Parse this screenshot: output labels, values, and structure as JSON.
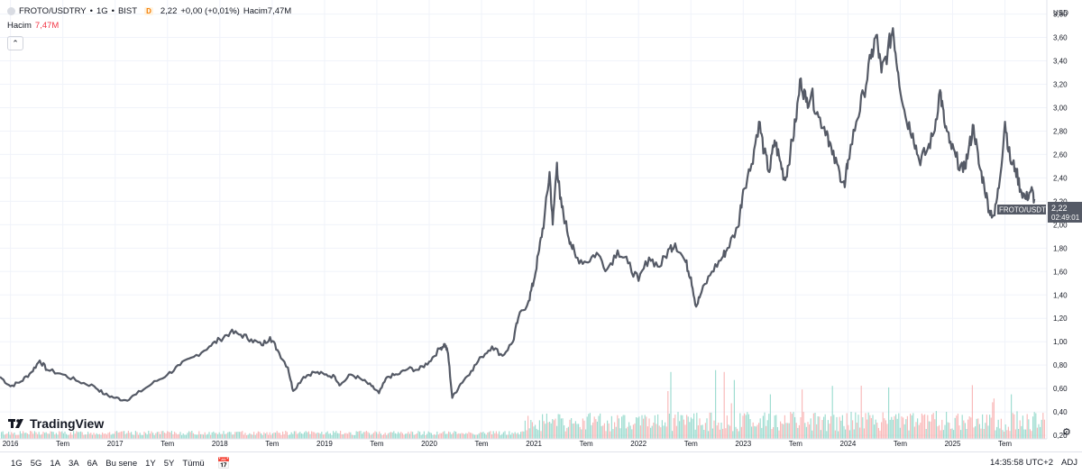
{
  "header": {
    "symbol": "FROTO/USDTRY",
    "interval": "1G",
    "exchange": "BIST",
    "sep1": "•",
    "sep2": "•",
    "badge": "D",
    "last": "2,22",
    "change": "+0,00 (+0,01%)",
    "volume_label": "Hacim",
    "volume_value": "7,47M"
  },
  "volume_legend": {
    "label": "Hacim",
    "value": "7,47M"
  },
  "price_label": {
    "symbol": "FROTO/USDTRY",
    "price": "2,22",
    "countdown": "02:49:01"
  },
  "currency": "USD",
  "logo": "TradingView",
  "ranges": [
    "1G",
    "5G",
    "1A",
    "3A",
    "6A",
    "Bu sene",
    "1Y",
    "5Y",
    "Tümü"
  ],
  "clock": "14:35:58 UTC+2",
  "adj": "ADJ",
  "colors": {
    "line": "#555a66",
    "vol_up": "#7fd1c1",
    "vol_down": "#f7a3a3",
    "label_bg": "#555a66",
    "grid": "#f0f3fa"
  },
  "chart_data": {
    "type": "line",
    "title": "FROTO/USDTRY • 1G • BIST",
    "ylabel": "USD",
    "ylim": [
      0.17,
      3.92
    ],
    "yticks": [
      "0,20",
      "0,40",
      "0,60",
      "0,80",
      "1,00",
      "1,20",
      "1,40",
      "1,60",
      "1,80",
      "2,00",
      "2,20",
      "2,40",
      "2,60",
      "2,80",
      "3,00",
      "3,20",
      "3,40",
      "3,60",
      "3,80"
    ],
    "xlim": [
      2015.9,
      2025.9
    ],
    "xticks": [
      {
        "t": 2016.0,
        "label": "2016"
      },
      {
        "t": 2016.5,
        "label": "Tem"
      },
      {
        "t": 2017.0,
        "label": "2017"
      },
      {
        "t": 2017.5,
        "label": "Tem"
      },
      {
        "t": 2018.0,
        "label": "2018"
      },
      {
        "t": 2018.5,
        "label": "Tem"
      },
      {
        "t": 2019.0,
        "label": "2019"
      },
      {
        "t": 2019.5,
        "label": "Tem"
      },
      {
        "t": 2020.0,
        "label": "2020"
      },
      {
        "t": 2020.5,
        "label": "Tem"
      },
      {
        "t": 2021.0,
        "label": "2021"
      },
      {
        "t": 2021.5,
        "label": "Tem"
      },
      {
        "t": 2022.0,
        "label": "2022"
      },
      {
        "t": 2022.5,
        "label": "Tem"
      },
      {
        "t": 2023.0,
        "label": "2023"
      },
      {
        "t": 2023.5,
        "label": "Tem"
      },
      {
        "t": 2024.0,
        "label": "2024"
      },
      {
        "t": 2024.5,
        "label": "Tem"
      },
      {
        "t": 2025.0,
        "label": "2025"
      },
      {
        "t": 2025.5,
        "label": "Tem"
      }
    ],
    "series": [
      {
        "name": "FROTO/USDTRY",
        "points": [
          [
            2015.9,
            0.7
          ],
          [
            2016.0,
            0.62
          ],
          [
            2016.1,
            0.66
          ],
          [
            2016.2,
            0.74
          ],
          [
            2016.28,
            0.84
          ],
          [
            2016.35,
            0.76
          ],
          [
            2016.5,
            0.72
          ],
          [
            2016.65,
            0.66
          ],
          [
            2016.8,
            0.62
          ],
          [
            2016.9,
            0.55
          ],
          [
            2017.0,
            0.52
          ],
          [
            2017.1,
            0.5
          ],
          [
            2017.2,
            0.55
          ],
          [
            2017.35,
            0.64
          ],
          [
            2017.5,
            0.72
          ],
          [
            2017.62,
            0.8
          ],
          [
            2017.75,
            0.87
          ],
          [
            2017.9,
            0.96
          ],
          [
            2018.0,
            1.02
          ],
          [
            2018.1,
            1.08
          ],
          [
            2018.2,
            1.06
          ],
          [
            2018.3,
            1.02
          ],
          [
            2018.4,
            0.97
          ],
          [
            2018.48,
            1.04
          ],
          [
            2018.55,
            0.93
          ],
          [
            2018.65,
            0.78
          ],
          [
            2018.7,
            0.58
          ],
          [
            2018.8,
            0.7
          ],
          [
            2018.9,
            0.74
          ],
          [
            2019.0,
            0.72
          ],
          [
            2019.1,
            0.7
          ],
          [
            2019.15,
            0.63
          ],
          [
            2019.25,
            0.72
          ],
          [
            2019.35,
            0.68
          ],
          [
            2019.45,
            0.62
          ],
          [
            2019.52,
            0.56
          ],
          [
            2019.6,
            0.7
          ],
          [
            2019.7,
            0.72
          ],
          [
            2019.8,
            0.77
          ],
          [
            2019.9,
            0.76
          ],
          [
            2020.0,
            0.83
          ],
          [
            2020.1,
            0.94
          ],
          [
            2020.15,
            0.98
          ],
          [
            2020.18,
            0.9
          ],
          [
            2020.22,
            0.52
          ],
          [
            2020.3,
            0.64
          ],
          [
            2020.4,
            0.75
          ],
          [
            2020.5,
            0.87
          ],
          [
            2020.6,
            0.96
          ],
          [
            2020.7,
            0.88
          ],
          [
            2020.8,
            1.0
          ],
          [
            2020.85,
            1.2
          ],
          [
            2020.95,
            1.35
          ],
          [
            2021.0,
            1.52
          ],
          [
            2021.05,
            1.78
          ],
          [
            2021.1,
            2.05
          ],
          [
            2021.15,
            2.45
          ],
          [
            2021.18,
            2.0
          ],
          [
            2021.22,
            2.53
          ],
          [
            2021.25,
            2.22
          ],
          [
            2021.3,
            2.02
          ],
          [
            2021.35,
            1.85
          ],
          [
            2021.4,
            1.72
          ],
          [
            2021.5,
            1.68
          ],
          [
            2021.6,
            1.76
          ],
          [
            2021.7,
            1.62
          ],
          [
            2021.8,
            1.78
          ],
          [
            2021.9,
            1.67
          ],
          [
            2022.0,
            1.52
          ],
          [
            2022.1,
            1.72
          ],
          [
            2022.2,
            1.64
          ],
          [
            2022.3,
            1.8
          ],
          [
            2022.35,
            1.84
          ],
          [
            2022.45,
            1.68
          ],
          [
            2022.5,
            1.55
          ],
          [
            2022.55,
            1.3
          ],
          [
            2022.6,
            1.42
          ],
          [
            2022.7,
            1.6
          ],
          [
            2022.8,
            1.72
          ],
          [
            2022.85,
            1.8
          ],
          [
            2022.95,
            1.98
          ],
          [
            2023.0,
            2.3
          ],
          [
            2023.08,
            2.52
          ],
          [
            2023.15,
            2.88
          ],
          [
            2023.2,
            2.62
          ],
          [
            2023.25,
            2.45
          ],
          [
            2023.3,
            2.72
          ],
          [
            2023.35,
            2.55
          ],
          [
            2023.4,
            2.38
          ],
          [
            2023.45,
            2.62
          ],
          [
            2023.5,
            2.88
          ],
          [
            2023.55,
            3.25
          ],
          [
            2023.6,
            3.05
          ],
          [
            2023.65,
            3.12
          ],
          [
            2023.72,
            2.92
          ],
          [
            2023.8,
            2.8
          ],
          [
            2023.85,
            2.6
          ],
          [
            2023.92,
            2.45
          ],
          [
            2023.97,
            2.32
          ],
          [
            2024.0,
            2.55
          ],
          [
            2024.08,
            2.88
          ],
          [
            2024.15,
            3.12
          ],
          [
            2024.22,
            3.42
          ],
          [
            2024.27,
            3.62
          ],
          [
            2024.32,
            3.3
          ],
          [
            2024.38,
            3.48
          ],
          [
            2024.43,
            3.68
          ],
          [
            2024.48,
            3.3
          ],
          [
            2024.55,
            2.92
          ],
          [
            2024.62,
            2.78
          ],
          [
            2024.68,
            2.55
          ],
          [
            2024.75,
            2.62
          ],
          [
            2024.82,
            2.78
          ],
          [
            2024.88,
            3.15
          ],
          [
            2024.92,
            2.88
          ],
          [
            2024.97,
            2.7
          ],
          [
            2025.03,
            2.58
          ],
          [
            2025.1,
            2.45
          ],
          [
            2025.15,
            2.62
          ],
          [
            2025.2,
            2.85
          ],
          [
            2025.25,
            2.52
          ],
          [
            2025.3,
            2.35
          ],
          [
            2025.35,
            2.12
          ],
          [
            2025.4,
            2.08
          ],
          [
            2025.45,
            2.38
          ],
          [
            2025.5,
            2.88
          ],
          [
            2025.55,
            2.55
          ],
          [
            2025.6,
            2.48
          ],
          [
            2025.65,
            2.3
          ],
          [
            2025.7,
            2.22
          ],
          [
            2025.75,
            2.3
          ],
          [
            2025.78,
            2.22
          ]
        ]
      }
    ]
  }
}
